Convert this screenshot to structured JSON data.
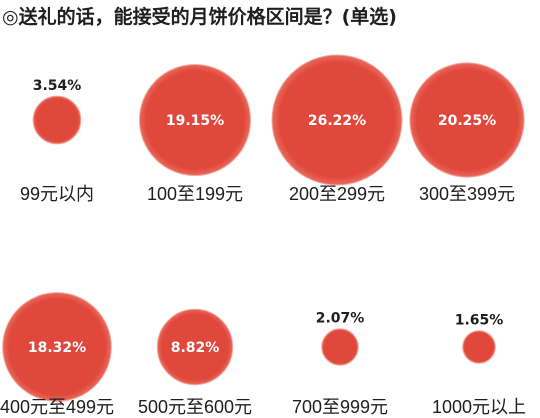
{
  "title": "◎送礼的话，能接受的月饼价格区间是？(单选)",
  "watermark": "",
  "colors": {
    "bubble": "#e0483b",
    "bubble_edge": "#f4a89d",
    "text_inside": "#ffffff",
    "text_outside": "#1e1e1e"
  },
  "chart_data": {
    "type": "bubble",
    "title": "◎送礼的话，能接受的月饼价格区间是？(单选)",
    "unit": "%",
    "categories": [
      "99元以内",
      "100至199元",
      "200至299元",
      "300至399元",
      "400元至499元",
      "500元至600元",
      "700至999元",
      "1000元以上"
    ],
    "values": [
      3.54,
      19.15,
      26.22,
      20.25,
      18.32,
      8.82,
      2.07,
      1.65
    ],
    "value_labels": [
      "3.54%",
      "19.15%",
      "26.22%",
      "20.25%",
      "18.32%",
      "8.82%",
      "2.07%",
      "1.65%"
    ],
    "legend": "none",
    "grid": false
  }
}
